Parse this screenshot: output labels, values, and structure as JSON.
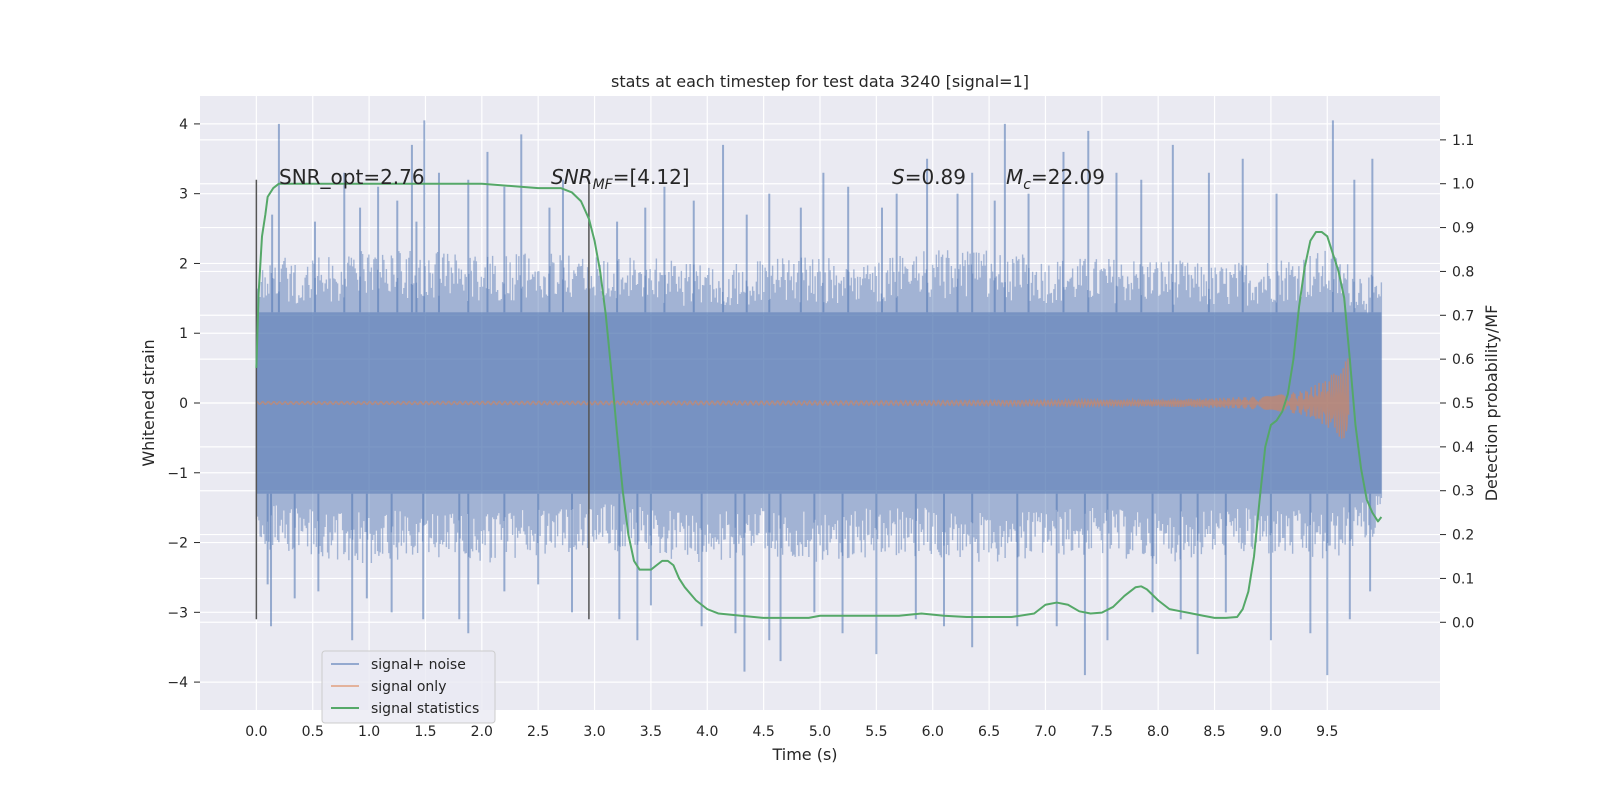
{
  "chart_data": {
    "type": "line",
    "title": "stats at each timestep for test data 3240 [signal=1]",
    "xlabel": "Time (s)",
    "ylabel": "Whitened strain",
    "y2label": "Detection probability/MF",
    "xlim": [
      -0.5,
      10.5
    ],
    "ylim": [
      -4.4,
      4.4
    ],
    "y2lim": [
      -0.2,
      1.2
    ],
    "xticks": [
      "0.0",
      "0.5",
      "1.0",
      "1.5",
      "2.0",
      "2.5",
      "3.0",
      "3.5",
      "4.0",
      "4.5",
      "5.0",
      "5.5",
      "6.0",
      "6.5",
      "7.0",
      "7.5",
      "8.0",
      "8.5",
      "9.0",
      "9.5"
    ],
    "yticks": [
      "4",
      "3",
      "2",
      "1",
      "0",
      "−1",
      "−2",
      "−3",
      "−4"
    ],
    "y2ticks": [
      "1.1",
      "1.0",
      "0.9",
      "0.8",
      "0.7",
      "0.6",
      "0.5",
      "0.4",
      "0.3",
      "0.2",
      "0.1",
      "0.0"
    ],
    "grid": true,
    "legend_position": "lower-left",
    "colors": {
      "background": "#eaeaf2",
      "noise": "#4c72b0",
      "signal": "#dd8452",
      "stats": "#55a868",
      "vline": "#555555"
    },
    "annotations": {
      "snr_opt_label": "SNR_opt=2.76",
      "snr_mf_sym": "SNR",
      "snr_mf_sub": "MF",
      "snr_mf_val": "=[4.12]",
      "s_sym": "S",
      "s_val": "=0.89",
      "mc_sym": "M",
      "mc_sub": "c",
      "mc_val": "=22.09"
    },
    "vertical_markers": [
      {
        "x": 0.0,
        "ymin": -3.1,
        "ymax": 3.2
      },
      {
        "x": 2.95,
        "ymin": -3.1,
        "ymax": 3.2
      }
    ],
    "series": [
      {
        "name": "signal+ noise",
        "axis": "left",
        "kind": "dense-noise",
        "x_range": [
          0.0,
          9.98
        ],
        "core_band": [
          -1.3,
          1.3
        ],
        "upper_envelope": [
          [
            0.0,
            1.9
          ],
          [
            0.5,
            1.9
          ],
          [
            1.0,
            2.0
          ],
          [
            1.5,
            2.0
          ],
          [
            2.0,
            1.9
          ],
          [
            2.5,
            2.0
          ],
          [
            3.0,
            1.9
          ],
          [
            3.5,
            1.9
          ],
          [
            4.0,
            1.8
          ],
          [
            4.5,
            1.9
          ],
          [
            5.0,
            1.9
          ],
          [
            5.5,
            1.9
          ],
          [
            6.0,
            2.0
          ],
          [
            6.5,
            2.0
          ],
          [
            7.0,
            1.9
          ],
          [
            7.5,
            1.9
          ],
          [
            8.0,
            1.9
          ],
          [
            8.5,
            1.8
          ],
          [
            9.0,
            1.9
          ],
          [
            9.5,
            2.0
          ],
          [
            9.98,
            1.6
          ]
        ],
        "lower_envelope": [
          [
            0.0,
            -1.9
          ],
          [
            0.5,
            -2.0
          ],
          [
            1.0,
            -2.1
          ],
          [
            1.5,
            -2.0
          ],
          [
            2.0,
            -2.1
          ],
          [
            2.5,
            -2.0
          ],
          [
            3.0,
            -1.9
          ],
          [
            3.5,
            -2.0
          ],
          [
            4.0,
            -2.1
          ],
          [
            4.5,
            -2.0
          ],
          [
            5.0,
            -2.1
          ],
          [
            5.5,
            -2.0
          ],
          [
            6.0,
            -2.0
          ],
          [
            6.5,
            -2.1
          ],
          [
            7.0,
            -2.0
          ],
          [
            7.5,
            -2.0
          ],
          [
            8.0,
            -2.1
          ],
          [
            8.5,
            -2.0
          ],
          [
            9.0,
            -2.0
          ],
          [
            9.5,
            -2.1
          ],
          [
            9.98,
            -1.7
          ]
        ],
        "peaks": [
          [
            0.14,
            2.7
          ],
          [
            0.2,
            4.0
          ],
          [
            0.52,
            2.6
          ],
          [
            0.78,
            3.3
          ],
          [
            0.92,
            2.8
          ],
          [
            1.08,
            3.1
          ],
          [
            1.25,
            2.9
          ],
          [
            1.38,
            3.7
          ],
          [
            1.42,
            2.6
          ],
          [
            1.49,
            4.05
          ],
          [
            1.62,
            3.3
          ],
          [
            1.88,
            3.2
          ],
          [
            2.05,
            3.6
          ],
          [
            2.2,
            3.1
          ],
          [
            2.35,
            3.85
          ],
          [
            2.6,
            2.8
          ],
          [
            2.72,
            3.2
          ],
          [
            3.2,
            2.6
          ],
          [
            3.45,
            2.8
          ],
          [
            3.62,
            3.1
          ],
          [
            3.88,
            2.9
          ],
          [
            4.14,
            3.7
          ],
          [
            4.35,
            2.7
          ],
          [
            4.55,
            3.0
          ],
          [
            4.83,
            2.8
          ],
          [
            5.03,
            3.3
          ],
          [
            5.25,
            3.1
          ],
          [
            5.55,
            2.8
          ],
          [
            5.68,
            3.0
          ],
          [
            5.95,
            3.5
          ],
          [
            6.22,
            3.0
          ],
          [
            6.35,
            3.3
          ],
          [
            6.55,
            2.9
          ],
          [
            6.64,
            4.0
          ],
          [
            6.85,
            3.0
          ],
          [
            7.16,
            3.6
          ],
          [
            7.38,
            3.9
          ],
          [
            7.63,
            3.3
          ],
          [
            7.85,
            3.2
          ],
          [
            8.13,
            3.7
          ],
          [
            8.45,
            3.3
          ],
          [
            8.75,
            3.5
          ],
          [
            9.05,
            3.0
          ],
          [
            9.55,
            4.05
          ],
          [
            9.74,
            3.2
          ],
          [
            9.9,
            3.5
          ]
        ],
        "troughs": [
          [
            0.1,
            -2.6
          ],
          [
            0.13,
            -3.2
          ],
          [
            0.34,
            -2.8
          ],
          [
            0.55,
            -2.7
          ],
          [
            0.85,
            -3.4
          ],
          [
            0.98,
            -2.8
          ],
          [
            1.2,
            -3.0
          ],
          [
            1.48,
            -3.1
          ],
          [
            1.8,
            -3.1
          ],
          [
            1.88,
            -3.3
          ],
          [
            2.2,
            -2.7
          ],
          [
            2.5,
            -2.6
          ],
          [
            2.8,
            -3.0
          ],
          [
            3.22,
            -3.1
          ],
          [
            3.38,
            -3.4
          ],
          [
            3.5,
            -2.9
          ],
          [
            3.95,
            -3.2
          ],
          [
            4.25,
            -3.3
          ],
          [
            4.33,
            -3.85
          ],
          [
            4.55,
            -3.4
          ],
          [
            4.65,
            -3.7
          ],
          [
            4.95,
            -3.0
          ],
          [
            5.2,
            -3.3
          ],
          [
            5.5,
            -3.6
          ],
          [
            5.85,
            -3.1
          ],
          [
            6.1,
            -3.2
          ],
          [
            6.35,
            -3.5
          ],
          [
            6.75,
            -3.2
          ],
          [
            7.1,
            -3.2
          ],
          [
            7.35,
            -3.9
          ],
          [
            7.55,
            -3.4
          ],
          [
            7.95,
            -3.0
          ],
          [
            8.2,
            -3.1
          ],
          [
            8.35,
            -3.6
          ],
          [
            8.6,
            -3.0
          ],
          [
            9.0,
            -3.4
          ],
          [
            9.35,
            -3.3
          ],
          [
            9.5,
            -3.9
          ],
          [
            9.7,
            -3.1
          ],
          [
            9.88,
            -2.7
          ]
        ]
      },
      {
        "name": "signal only",
        "axis": "left",
        "kind": "chirp",
        "x_range": [
          0.0,
          9.69
        ],
        "amplitude": [
          [
            0.0,
            0.02
          ],
          [
            5.0,
            0.03
          ],
          [
            7.0,
            0.04
          ],
          [
            8.0,
            0.05
          ],
          [
            8.5,
            0.07
          ],
          [
            9.0,
            0.1
          ],
          [
            9.3,
            0.18
          ],
          [
            9.5,
            0.35
          ],
          [
            9.6,
            0.5
          ],
          [
            9.66,
            0.62
          ],
          [
            9.69,
            0.65
          ]
        ]
      },
      {
        "name": "signal statistics",
        "axis": "right",
        "x": [
          0.0,
          0.02,
          0.05,
          0.08,
          0.1,
          0.15,
          0.2,
          0.3,
          0.5,
          1.0,
          1.5,
          2.0,
          2.5,
          2.6,
          2.7,
          2.8,
          2.88,
          2.95,
          3.0,
          3.05,
          3.1,
          3.15,
          3.2,
          3.25,
          3.3,
          3.35,
          3.4,
          3.5,
          3.55,
          3.6,
          3.65,
          3.7,
          3.75,
          3.8,
          3.9,
          4.0,
          4.1,
          4.3,
          4.5,
          4.7,
          4.9,
          5.0,
          5.2,
          5.5,
          5.7,
          5.9,
          6.1,
          6.3,
          6.5,
          6.7,
          6.9,
          7.0,
          7.1,
          7.2,
          7.3,
          7.4,
          7.5,
          7.6,
          7.7,
          7.8,
          7.85,
          7.9,
          8.0,
          8.1,
          8.2,
          8.3,
          8.4,
          8.5,
          8.6,
          8.7,
          8.75,
          8.8,
          8.85,
          8.9,
          8.95,
          9.0,
          9.05,
          9.1,
          9.15,
          9.2,
          9.25,
          9.3,
          9.35,
          9.4,
          9.45,
          9.5,
          9.55,
          9.6,
          9.65,
          9.7,
          9.75,
          9.8,
          9.85,
          9.9,
          9.95,
          9.98
        ],
        "y": [
          0.58,
          0.75,
          0.88,
          0.93,
          0.97,
          0.99,
          1.0,
          1.0,
          1.0,
          1.0,
          1.0,
          1.0,
          0.99,
          0.99,
          0.99,
          0.98,
          0.96,
          0.92,
          0.87,
          0.8,
          0.7,
          0.57,
          0.43,
          0.3,
          0.2,
          0.14,
          0.12,
          0.12,
          0.13,
          0.14,
          0.14,
          0.13,
          0.1,
          0.08,
          0.05,
          0.03,
          0.02,
          0.015,
          0.01,
          0.01,
          0.01,
          0.015,
          0.015,
          0.015,
          0.015,
          0.02,
          0.015,
          0.012,
          0.012,
          0.012,
          0.02,
          0.04,
          0.045,
          0.04,
          0.025,
          0.02,
          0.022,
          0.035,
          0.06,
          0.08,
          0.082,
          0.075,
          0.05,
          0.03,
          0.025,
          0.02,
          0.015,
          0.01,
          0.01,
          0.012,
          0.03,
          0.07,
          0.15,
          0.28,
          0.4,
          0.45,
          0.46,
          0.48,
          0.52,
          0.6,
          0.72,
          0.81,
          0.87,
          0.89,
          0.89,
          0.88,
          0.84,
          0.8,
          0.74,
          0.6,
          0.45,
          0.35,
          0.28,
          0.25,
          0.23,
          0.24
        ]
      }
    ]
  }
}
